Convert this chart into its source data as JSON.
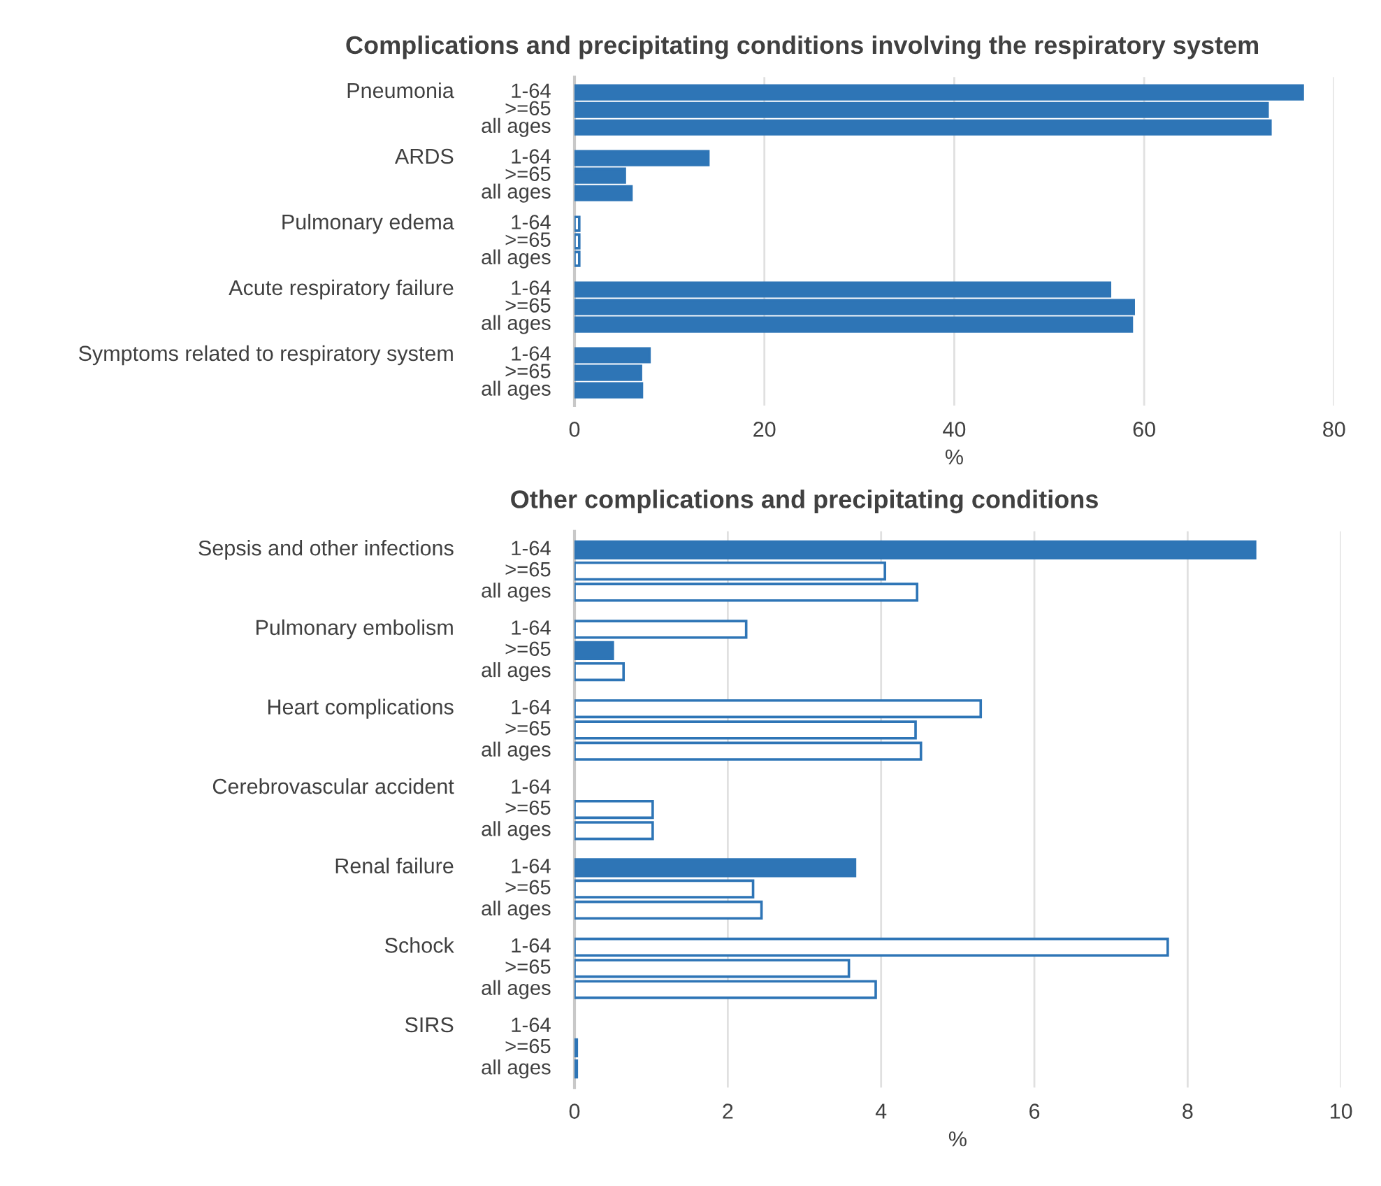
{
  "chart_data": [
    {
      "type": "bar",
      "orientation": "horizontal",
      "title": "Complications and precipitating conditions involving the respiratory system",
      "xlabel": "%",
      "categories": [
        "Pneumonia",
        "ARDS",
        "Pulmonary edema",
        "Acute respiratory failure",
        "Symptoms related to respiratory system"
      ],
      "series": [
        {
          "name": "1-64",
          "color": "#2e75b6",
          "colors": [
            "#2e75b6",
            "#2e75b6",
            "#ffffff",
            "#2e75b6",
            "#2e75b6"
          ],
          "values": [
            76.7,
            14.1,
            0.5,
            56.4,
            7.9
          ]
        },
        {
          "name": ">=65",
          "color": "#2e75b6",
          "colors": [
            "#2e75b6",
            "#2e75b6",
            "#ffffff",
            "#2e75b6",
            "#2e75b6"
          ],
          "values": [
            73.0,
            5.3,
            0.5,
            58.9,
            7.0
          ]
        },
        {
          "name": "all ages",
          "color": "#2e75b6",
          "colors": [
            "#2e75b6",
            "#2e75b6",
            "#ffffff",
            "#2e75b6",
            "#2e75b6"
          ],
          "values": [
            73.3,
            6.0,
            0.5,
            58.7,
            7.1
          ]
        }
      ],
      "xlim": [
        0,
        80
      ],
      "xticks": [
        0,
        20,
        40,
        60,
        80
      ],
      "grid": "x",
      "legend": false
    },
    {
      "type": "bar",
      "orientation": "horizontal",
      "title": "Other complications and precipitating conditions",
      "xlabel": "%",
      "categories": [
        "Sepsis and other infections",
        "Pulmonary embolism",
        "Heart complications",
        "Cerebrovascular accident",
        "Renal failure",
        "Schock",
        "SIRS"
      ],
      "series": [
        {
          "name": "1-64",
          "color": "#2e75b6",
          "colors": [
            "#2e75b6",
            "#ffffff",
            "#ffffff",
            null,
            "#2e75b6",
            "#ffffff",
            null
          ],
          "values": [
            8.88,
            2.24,
            5.3,
            null,
            3.66,
            7.74,
            null
          ]
        },
        {
          "name": ">=65",
          "color": "#2e75b6",
          "colors": [
            "#ffffff",
            "#2e75b6",
            "#ffffff",
            "#ffffff",
            "#ffffff",
            "#ffffff",
            "#ffffff"
          ],
          "values": [
            4.05,
            0.5,
            4.45,
            1.02,
            2.33,
            3.58,
            0.03
          ]
        },
        {
          "name": "all ages",
          "color": "#2e75b6",
          "colors": [
            "#ffffff",
            "#ffffff",
            "#ffffff",
            "#ffffff",
            "#ffffff",
            "#ffffff",
            "#ffffff"
          ],
          "values": [
            4.47,
            0.64,
            4.52,
            1.02,
            2.44,
            3.93,
            0.03
          ]
        }
      ],
      "xlim": [
        0,
        10
      ],
      "xticks": [
        0,
        2,
        4,
        6,
        8,
        10
      ],
      "grid": "x",
      "legend": false
    }
  ]
}
